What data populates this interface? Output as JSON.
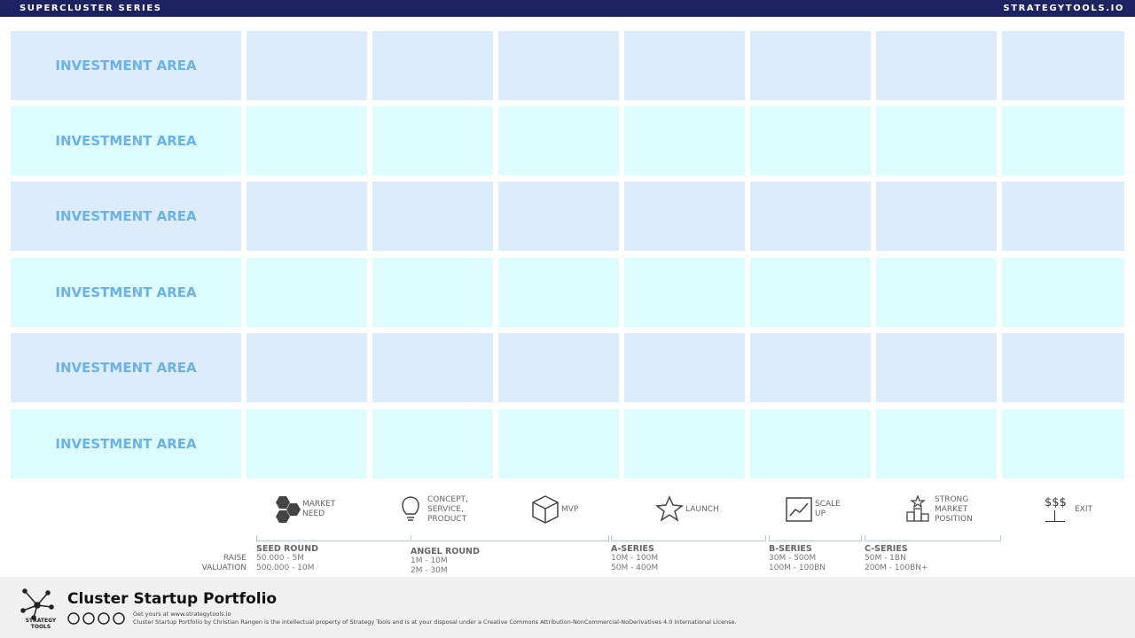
{
  "header": {
    "left": "SUPERCLUSTER SERIES",
    "right": "STRATEGYTOOLS.IO"
  },
  "rows": [
    "INVESTMENT AREA",
    "INVESTMENT AREA",
    "INVESTMENT AREA",
    "INVESTMENT AREA",
    "INVESTMENT AREA",
    "INVESTMENT AREA"
  ],
  "stages": [
    {
      "lines": [
        "MARKET",
        "NEED"
      ]
    },
    {
      "lines": [
        "CONCEPT,",
        "SERVICE,",
        "PRODUCT"
      ]
    },
    {
      "lines": [
        "MVP"
      ]
    },
    {
      "lines": [
        "LAUNCH"
      ]
    },
    {
      "lines": [
        "SCALE",
        "UP"
      ]
    },
    {
      "lines": [
        "STRONG",
        "MARKET",
        "POSITION"
      ]
    },
    {
      "icon_text": "$$$",
      "lines": [
        "EXIT"
      ]
    }
  ],
  "funding": {
    "labels": [
      "RAISE",
      "VALUATION"
    ],
    "rounds": [
      {
        "name": "SEED ROUND",
        "raise": "50.000 - 5M",
        "valuation": "500.000 - 10M"
      },
      {
        "name": "ANGEL ROUND",
        "raise": "1M - 10M",
        "valuation": "2M - 30M"
      },
      {
        "name": "A-SERIES",
        "raise": "10M - 100M",
        "valuation": "50M - 400M"
      },
      {
        "name": "B-SERIES",
        "raise": "30M - 500M",
        "valuation": "100M - 100BN"
      },
      {
        "name": "C-SERIES",
        "raise": "50M - 1BN",
        "valuation": "200M - 100BN+"
      }
    ]
  },
  "footer": {
    "title": "Cluster Startup Portfolio",
    "logo": "STRATEGY TOOLS",
    "line1": "Get yours at www.strategytools.io",
    "line2": "Cluster Startup Portfolio by Christian Rangen is the intellectual property of Strategy Tools and is at your disposal under a Creative Commons Attribution-NonCommercial-NoDerivatives 4.0 International License."
  }
}
